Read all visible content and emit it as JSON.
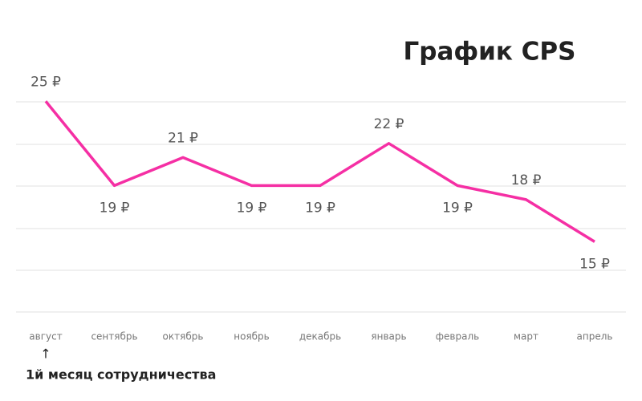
{
  "chart_data": {
    "type": "line",
    "title": "График CPS",
    "categories": [
      "август",
      "сентябрь",
      "октябрь",
      "ноябрь",
      "декабрь",
      "январь",
      "февраль",
      "март",
      "апрель"
    ],
    "series": [
      {
        "name": "CPS",
        "color": "#f52fa4",
        "values": [
          25,
          19,
          21,
          19,
          19,
          22,
          19,
          18,
          15
        ],
        "value_labels": [
          "25 ₽",
          "19 ₽",
          "21 ₽",
          "19 ₽",
          "19 ₽",
          "22 ₽",
          "19 ₽",
          "18 ₽",
          "15 ₽"
        ]
      }
    ],
    "ylim": [
      10,
      26.5
    ],
    "annotation": "1й месяц сотрудничества"
  }
}
